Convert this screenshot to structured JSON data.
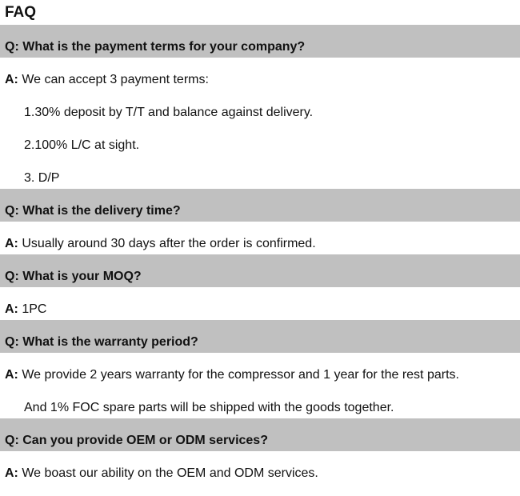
{
  "title": "FAQ",
  "q_prefix": "Q:",
  "a_prefix": "A:",
  "faqs": [
    {
      "q": "What is the payment terms for your company?",
      "a": "We can accept 3 payment terms:",
      "extra": [
        "1.30% deposit by T/T and balance against delivery.",
        "2.100% L/C at sight.",
        "3. D/P"
      ]
    },
    {
      "q": "What is the delivery time?",
      "a": "Usually around 30 days after the order is confirmed.",
      "extra": []
    },
    {
      "q": "What is your MOQ?",
      "a": "1PC",
      "extra": []
    },
    {
      "q": "What is the warranty period?",
      "a": "We provide 2 years warranty for the compressor and 1 year for the rest parts.",
      "extra": [
        "And 1% FOC spare parts will be shipped with the goods together."
      ]
    },
    {
      "q": "Can you provide OEM or ODM services?",
      "a": "We boast our ability on the OEM and ODM services.",
      "extra": []
    }
  ]
}
